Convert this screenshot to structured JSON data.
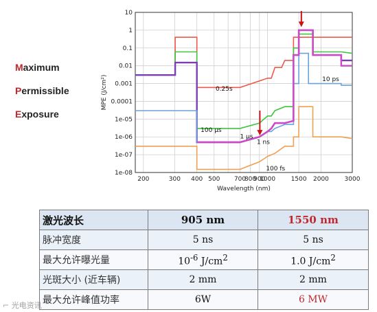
{
  "side_words": [
    {
      "cap": "M",
      "rest": "aximum"
    },
    {
      "cap": "P",
      "rest": "ermissible"
    },
    {
      "cap": "E",
      "rest": "xposure"
    }
  ],
  "chart_data": {
    "type": "line",
    "xlabel": "Wavelength (nm)",
    "ylabel": "MPE (J/cm²)",
    "x_scale": "log",
    "y_scale": "log",
    "xlim": [
      180,
      3000
    ],
    "ylim": [
      1e-08,
      10
    ],
    "x_ticks": [
      200,
      300,
      400,
      500,
      600,
      700,
      800,
      900,
      1000,
      1500,
      2000,
      3000
    ],
    "x_tick_labels": [
      "200",
      "300",
      "400",
      "500",
      "",
      "700",
      "800",
      "900",
      "1000",
      "1500",
      "2000",
      "3000"
    ],
    "y_ticks": [
      10,
      1,
      0.1,
      0.01,
      0.001,
      0.0001,
      1e-05,
      1e-06,
      1e-07,
      1e-08
    ],
    "y_tick_labels": [
      "10",
      "1",
      "0.1",
      "0.01",
      "0.001",
      "0.0001",
      "1e-05",
      "1e-06",
      "1e-07",
      "1e-08"
    ],
    "grid": true,
    "series": [
      {
        "name": "0.25s",
        "color": "#ee5a4a",
        "label_at": [
          510,
          0.0004
        ],
        "points": [
          [
            180,
            0.003
          ],
          [
            302,
            0.003
          ],
          [
            302,
            0.4
          ],
          [
            400,
            0.4
          ],
          [
            400,
            0.0006
          ],
          [
            700,
            0.0006
          ],
          [
            1000,
            0.002
          ],
          [
            1050,
            0.002
          ],
          [
            1100,
            0.008
          ],
          [
            1200,
            0.008
          ],
          [
            1250,
            0.02
          ],
          [
            1400,
            0.02
          ],
          [
            1400,
            0.4
          ],
          [
            1800,
            0.4
          ],
          [
            3000,
            0.4
          ]
        ]
      },
      {
        "name": "",
        "color": "#3ec43e",
        "points": [
          [
            180,
            0.003
          ],
          [
            302,
            0.003
          ],
          [
            302,
            0.06
          ],
          [
            400,
            0.06
          ],
          [
            400,
            3e-06
          ],
          [
            600,
            3e-06
          ],
          [
            700,
            3e-06
          ],
          [
            900,
            6e-06
          ],
          [
            1000,
            1.5e-05
          ],
          [
            1050,
            1.5e-05
          ],
          [
            1100,
            3e-05
          ],
          [
            1250,
            5e-05
          ],
          [
            1400,
            5e-05
          ],
          [
            1400,
            0.1
          ],
          [
            1500,
            0.1
          ],
          [
            1500,
            0.6
          ],
          [
            1800,
            0.6
          ],
          [
            1800,
            0.06
          ],
          [
            2600,
            0.06
          ],
          [
            3000,
            0.05
          ]
        ]
      },
      {
        "name": "",
        "color": "#7a3fb5",
        "points": [
          [
            180,
            0.003
          ],
          [
            302,
            0.003
          ],
          [
            302,
            0.015
          ],
          [
            400,
            0.015
          ],
          [
            400,
            5e-07
          ],
          [
            700,
            5e-07
          ],
          [
            900,
            1e-06
          ],
          [
            1000,
            2e-06
          ],
          [
            1050,
            3e-06
          ],
          [
            1100,
            6e-06
          ],
          [
            1250,
            6e-06
          ],
          [
            1400,
            8e-06
          ],
          [
            1400,
            0.04
          ],
          [
            1500,
            0.04
          ],
          [
            1500,
            1
          ],
          [
            1800,
            1
          ],
          [
            1800,
            0.04
          ],
          [
            2600,
            0.04
          ],
          [
            2600,
            0.02
          ],
          [
            3000,
            0.02
          ]
        ]
      },
      {
        "name": "10 ps",
        "color": "#6aa2dc",
        "label_at": [
          2030,
          0.0014
        ],
        "points": [
          [
            180,
            3e-05
          ],
          [
            400,
            3e-05
          ],
          [
            400,
            5e-07
          ],
          [
            700,
            5e-07
          ],
          [
            900,
            1e-06
          ],
          [
            1000,
            2e-06
          ],
          [
            1050,
            2e-06
          ],
          [
            1100,
            3e-06
          ],
          [
            1250,
            5e-06
          ],
          [
            1400,
            5e-06
          ],
          [
            1400,
            0.001
          ],
          [
            1500,
            0.001
          ],
          [
            1500,
            0.05
          ],
          [
            1700,
            0.05
          ],
          [
            1700,
            0.001
          ],
          [
            2600,
            0.001
          ],
          [
            2600,
            0.0008
          ],
          [
            3000,
            0.0008
          ]
        ]
      },
      {
        "name": "",
        "color": "#cc49c8",
        "points": [
          [
            400,
            5e-07
          ],
          [
            700,
            5e-07
          ],
          [
            900,
            1e-06
          ],
          [
            1000,
            2e-06
          ],
          [
            1050,
            3e-06
          ],
          [
            1100,
            6e-06
          ],
          [
            1250,
            6e-06
          ],
          [
            1400,
            8e-06
          ],
          [
            1400,
            0.04
          ],
          [
            1500,
            0.04
          ],
          [
            1500,
            1
          ],
          [
            1800,
            1
          ],
          [
            1800,
            0.04
          ],
          [
            2600,
            0.04
          ],
          [
            2600,
            0.01
          ],
          [
            3000,
            0.01
          ]
        ]
      },
      {
        "name": "",
        "color": "#f0a050",
        "points": [
          [
            180,
            3e-07
          ],
          [
            400,
            3e-07
          ],
          [
            400,
            1.5e-08
          ],
          [
            600,
            1.5e-08
          ],
          [
            700,
            1.5e-08
          ],
          [
            900,
            4e-08
          ],
          [
            1000,
            8e-08
          ],
          [
            1100,
            1.2e-07
          ],
          [
            1250,
            3e-07
          ],
          [
            1400,
            3e-07
          ],
          [
            1400,
            1e-06
          ],
          [
            1500,
            1e-06
          ],
          [
            1500,
            5e-05
          ],
          [
            1800,
            5e-05
          ],
          [
            1800,
            1e-06
          ],
          [
            2600,
            1e-06
          ],
          [
            3000,
            8e-07
          ]
        ]
      }
    ],
    "annotations": [
      {
        "text": "100 µs",
        "at": [
          420,
          1.9e-06
        ],
        "color": "#111"
      },
      {
        "text": "1 µs",
        "at": [
          700,
          8e-07
        ],
        "color": "#111"
      },
      {
        "text": "1 ns",
        "at": [
          870,
          4e-07
        ],
        "color": "#111"
      },
      {
        "text": "100 fs",
        "at": [
          980,
          1.3e-08
        ],
        "color": "#111"
      }
    ],
    "arrows": [
      {
        "x": 905,
        "y_from": 3e-05,
        "y_to": 1.2e-06,
        "color": "#cc1111"
      },
      {
        "x": 1550,
        "y_from": 12,
        "y_to": 1.5,
        "color": "#cc1111"
      }
    ]
  },
  "table": {
    "header": [
      "激光波长",
      "905 nm",
      "1550 nm"
    ],
    "rows": [
      {
        "label": "脉冲宽度",
        "a": "5 ns",
        "b": "5 ns"
      },
      {
        "label": "最大允许曝光量",
        "a_base": "10",
        "a_exp": "-6",
        "a_unit": " J/cm",
        "a_unit_exp": "2",
        "b_base": "1.0 J/cm",
        "b_exp": "2"
      },
      {
        "label": "光斑大小 (近车辆)",
        "a": "2 mm",
        "b": "2 mm"
      },
      {
        "label": "最大允许峰值功率",
        "a": "6W",
        "b": "6 MW"
      }
    ]
  },
  "watermark": "⌐ 光电资讯"
}
